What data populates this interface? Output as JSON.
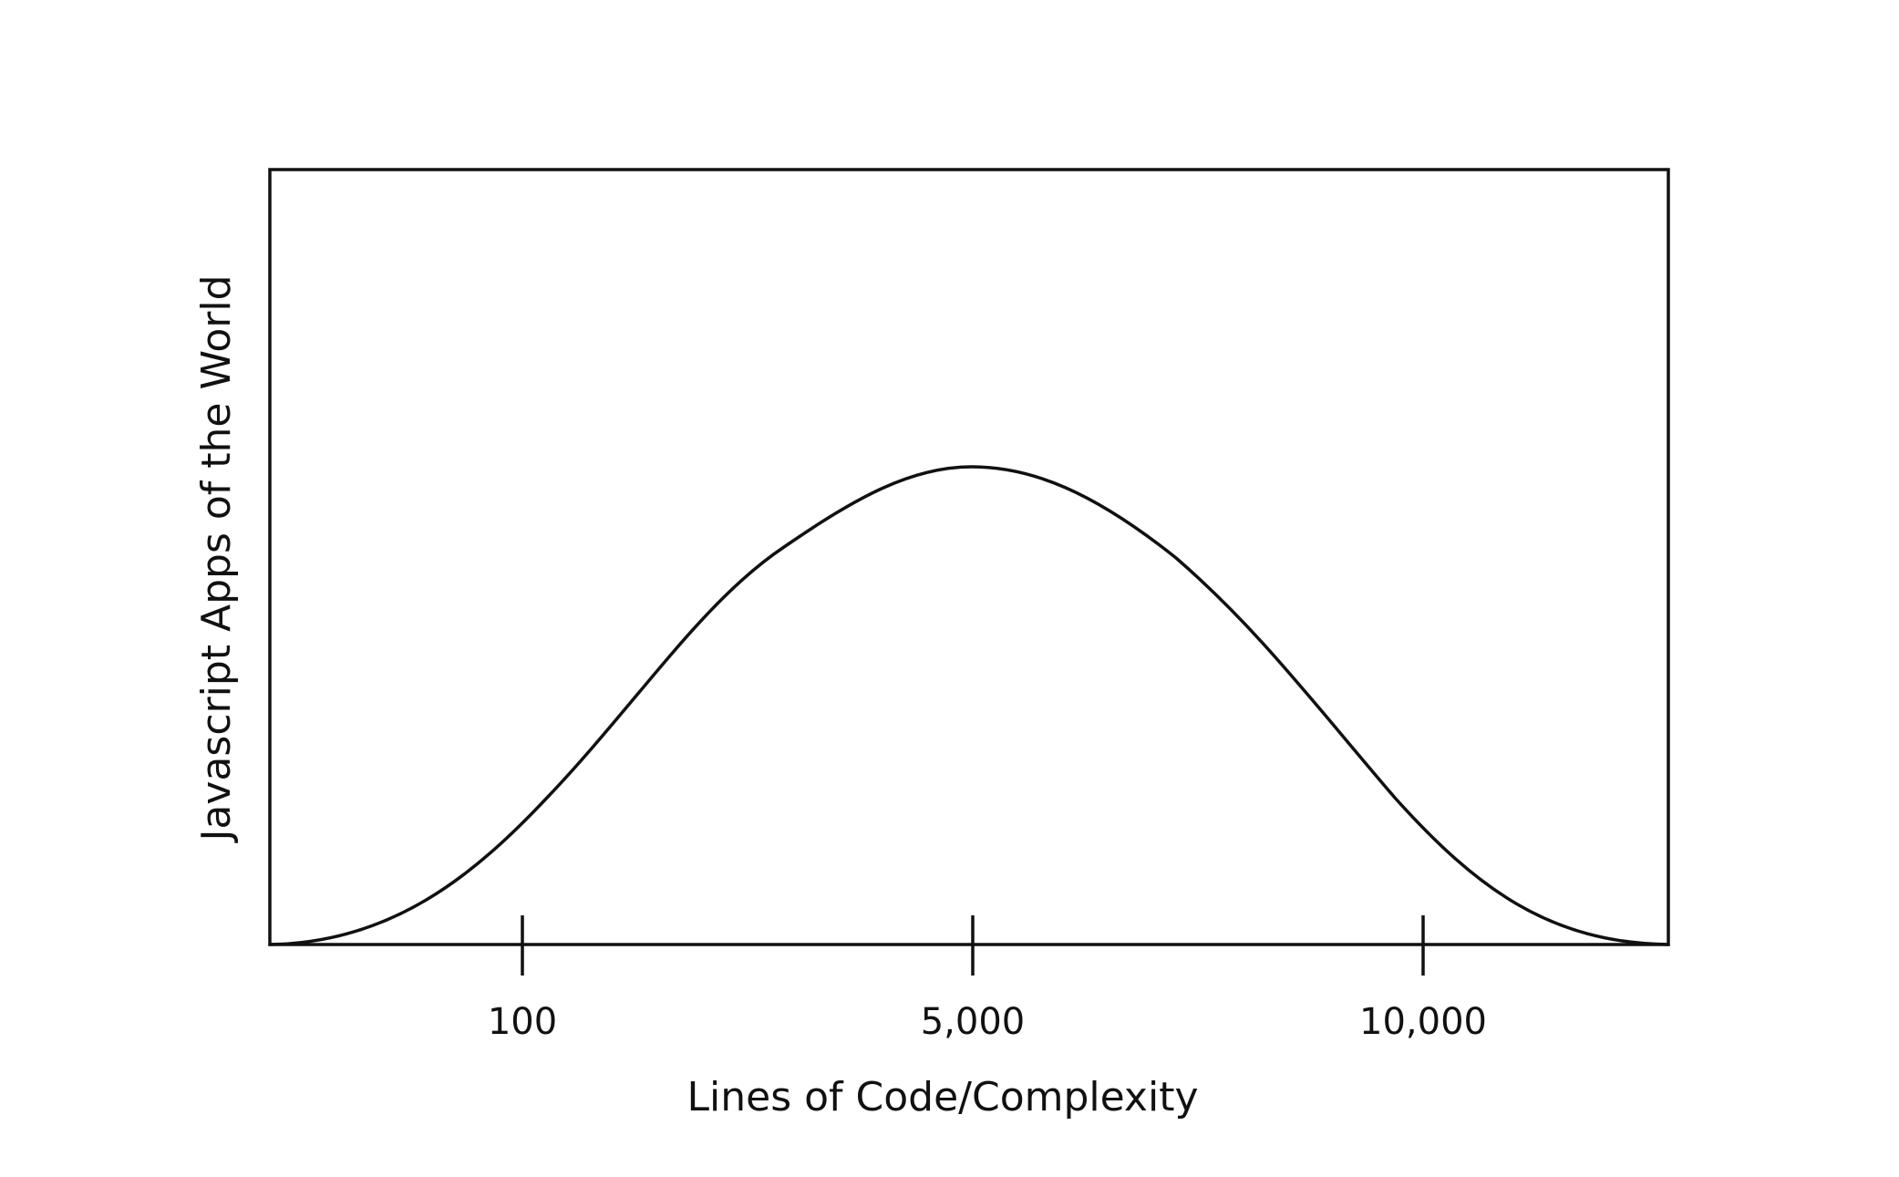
{
  "chart_data": {
    "type": "line",
    "title": "",
    "xlabel": "Lines of Code/Complexity",
    "ylabel": "Javascript Apps of the World",
    "x_ticks": [
      "100",
      "5,000",
      "10,000"
    ],
    "curve": "bell",
    "grid": false,
    "legend": "none",
    "colors": {
      "line": "#111111",
      "frame": "#111111",
      "background": "#ffffff"
    }
  }
}
